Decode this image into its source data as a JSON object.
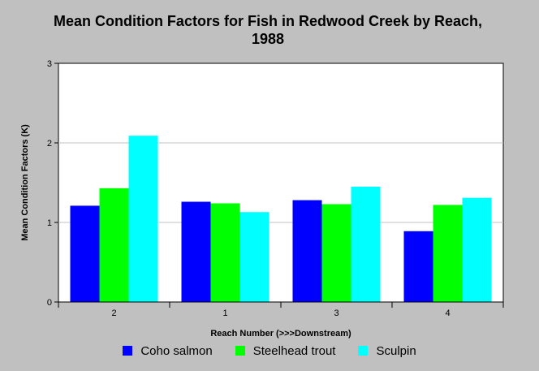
{
  "chart_data": {
    "type": "bar",
    "title": "Mean Condition Factors for Fish in Redwood Creek by Reach, 1988",
    "xlabel": "Reach Number (>>>Downstream)",
    "ylabel": "Mean Condition Factors (K)",
    "categories": [
      "2",
      "1",
      "3",
      "4"
    ],
    "ylim": [
      0,
      3
    ],
    "yticks": [
      "0",
      "1",
      "2",
      "3"
    ],
    "grid": true,
    "legend_position": "bottom",
    "series": [
      {
        "name": "Coho salmon",
        "color": "#0000ff",
        "values": [
          1.21,
          1.26,
          1.28,
          0.89
        ]
      },
      {
        "name": "Steelhead trout",
        "color": "#00ff00",
        "values": [
          1.43,
          1.24,
          1.23,
          1.22
        ]
      },
      {
        "name": "Sculpin",
        "color": "#00ffff",
        "values": [
          2.09,
          1.13,
          1.45,
          1.31
        ]
      }
    ]
  }
}
